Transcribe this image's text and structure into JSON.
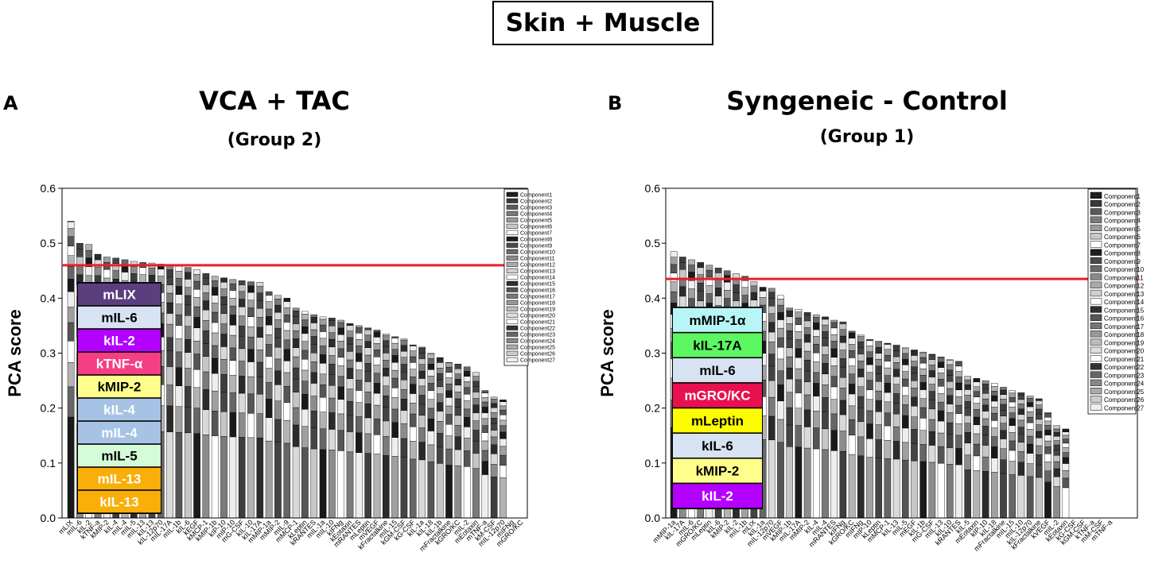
{
  "figure_title": "Skin + Muscle",
  "colors": {
    "threshold": "#e8202a",
    "bar_dark": "#222222"
  },
  "panels": [
    {
      "letter": "A",
      "title": "VCA + TAC",
      "subtitle": "(Group 2)"
    },
    {
      "letter": "B",
      "title": "Syngeneic - Control",
      "subtitle": "(Group 1)"
    }
  ],
  "chart_data": [
    {
      "type": "bar",
      "stacked": true,
      "title": "VCA + TAC",
      "ylabel": "PCA score",
      "ylim": [
        0,
        0.6
      ],
      "yticks": [
        "0.0",
        "0.1",
        "0.2",
        "0.3",
        "0.4",
        "0.5",
        "0.6"
      ],
      "threshold": 0.46,
      "categories": [
        "mLIX",
        "mIL-6",
        "kIL-2",
        "kTNF-a",
        "kMIP-2",
        "kIL-4",
        "mIL-4",
        "mIL-5",
        "mIL-13",
        "kIL-13",
        "kIL-12p70",
        "mIL-17A",
        "mIL-1b",
        "kIL-6",
        "kEGF",
        "kMCP-1",
        "kMIP-1b",
        "kIP-10",
        "mIP-10",
        "mG-CSF",
        "kIL-10",
        "kIL-17A",
        "mMIP-1a",
        "mMIP-2",
        "mIL-9",
        "mMCP-1",
        "kLeptin",
        "kRANTES",
        "mIL-1a",
        "mIL-10",
        "kIFNg",
        "kEotaxin",
        "mRANTES",
        "mLeptin",
        "mVEGF",
        "kFractalkine",
        "mIL-15",
        "kGM-CSF",
        "kG-CSF",
        "kIL-1a",
        "kIL-18",
        "kIL-1b",
        "mFractalkine",
        "kGRO/KC",
        "mIL-2",
        "mEotaxin",
        "mTNF-a",
        "kM-CSF",
        "mIL-12p70",
        "mIFNg",
        "mGRO/KC"
      ],
      "values": [
        0.54,
        0.5,
        0.498,
        0.48,
        0.475,
        0.473,
        0.47,
        0.467,
        0.465,
        0.464,
        0.462,
        0.461,
        0.458,
        0.456,
        0.452,
        0.445,
        0.44,
        0.437,
        0.434,
        0.432,
        0.43,
        0.429,
        0.412,
        0.405,
        0.4,
        0.382,
        0.376,
        0.37,
        0.366,
        0.364,
        0.36,
        0.354,
        0.35,
        0.346,
        0.342,
        0.335,
        0.33,
        0.326,
        0.315,
        0.311,
        0.3,
        0.292,
        0.283,
        0.28,
        0.275,
        0.265,
        0.232,
        0.22,
        0.215,
        0,
        0
      ],
      "highlight_labels": [
        "mLIX",
        "mIL-6",
        "kIL-2",
        "kTNF-α",
        "kMIP-2",
        "kIL-4",
        "mIL-4",
        "mIL-5",
        "mIL-13",
        "kIL-13"
      ],
      "highlight_colors": [
        "#5b3e7e",
        "#d7e3f2",
        "#b400ff",
        "#f43f84",
        "#fffd8c",
        "#a6c3e5",
        "#a6c3e5",
        "#d4fcd6",
        "#f9ae08",
        "#f9ae08"
      ],
      "highlight_text_colors": [
        "#ffffff",
        "#000000",
        "#ffffff",
        "#ffffff",
        "#000000",
        "#ffffff",
        "#ffffff",
        "#000000",
        "#ffffff",
        "#ffffff"
      ],
      "legend": [
        "Component1",
        "Component2",
        "Component3",
        "Component4",
        "Component5",
        "Component6",
        "Component7",
        "Component8",
        "Component9",
        "Component10",
        "Component11",
        "Component12",
        "Component13",
        "Component14",
        "Component15",
        "Component16",
        "Component17",
        "Component18",
        "Component19",
        "Component20",
        "Component21",
        "Component22",
        "Component23",
        "Component24",
        "Component25",
        "Component26",
        "Component27"
      ],
      "legend_colors": [
        "#1e1e1e",
        "#3a3a3a",
        "#5a5a5a",
        "#7a7a7a",
        "#9a9a9a",
        "#c8c8c8",
        "#ffffff",
        "#1e1e1e",
        "#4a4a4a",
        "#6a6a6a",
        "#8a8a8a",
        "#aaaaaa",
        "#d0d0d0",
        "#ffffff",
        "#2e2e2e",
        "#555555",
        "#777777",
        "#999999",
        "#bbbbbb",
        "#dddddd",
        "#ffffff",
        "#333333",
        "#666666",
        "#888888",
        "#aaaaaa",
        "#cccccc",
        "#eeeeee"
      ]
    },
    {
      "type": "bar",
      "stacked": true,
      "title": "Syngeneic - Control",
      "ylabel": "PCA score",
      "ylim": [
        0,
        0.6
      ],
      "yticks": [
        "0.0",
        "0.1",
        "0.2",
        "0.3",
        "0.4",
        "0.5",
        "0.6"
      ],
      "threshold": 0.435,
      "categories": [
        "mMIP-1a",
        "kIL-17A",
        "mIL-6",
        "mGRO/KC",
        "mLeptin",
        "kIL-6",
        "kMIP-2",
        "kIL-2",
        "mIL-1b",
        "mLIX",
        "kIL-1a",
        "mIL-12p70",
        "mVEGF",
        "kMIP-1b",
        "mIL-17A",
        "mMIP-2",
        "kIL-4",
        "mIL-4",
        "mRANTES",
        "kIFNg",
        "kGRO/KC",
        "mIFNg",
        "mIP-10",
        "kLeptin",
        "mMCP-1",
        "kIL-13",
        "mIL-5",
        "mEGF",
        "kIL-1b",
        "mG-CSF",
        "mIL-13",
        "kIL-10",
        "kRANTES",
        "kIL-5",
        "mEotaxin",
        "kIP-10",
        "kIL-18",
        "mFractalkine",
        "mIL-15",
        "mIL-10",
        "kIL-12p70",
        "kFractalkine",
        "kVEGF",
        "mIL-2",
        "kEotaxin",
        "kG-CSF",
        "kGM-CSF",
        "kTNF-a",
        "mM-CSF",
        "mTNF-a"
      ],
      "values": [
        0.485,
        0.475,
        0.47,
        0.465,
        0.46,
        0.455,
        0.45,
        0.445,
        0.44,
        0.43,
        0.42,
        0.418,
        0.405,
        0.382,
        0.38,
        0.374,
        0.37,
        0.366,
        0.36,
        0.357,
        0.34,
        0.333,
        0.325,
        0.322,
        0.318,
        0.315,
        0.31,
        0.306,
        0.302,
        0.298,
        0.293,
        0.288,
        0.285,
        0.258,
        0.254,
        0.25,
        0.245,
        0.238,
        0.232,
        0.228,
        0.222,
        0.217,
        0.192,
        0.168,
        0.162,
        0,
        0,
        0,
        0,
        0
      ],
      "highlight_labels": [
        "mMIP-1α",
        "kIL-17A",
        "mIL-6",
        "mGRO/KC",
        "mLeptin",
        "kIL-6",
        "kMIP-2",
        "kIL-2"
      ],
      "highlight_colors": [
        "#b8f5f7",
        "#5df761",
        "#d7e3f2",
        "#e8114f",
        "#fcfd00",
        "#d7e3f2",
        "#fffd8c",
        "#b400ff"
      ],
      "highlight_text_colors": [
        "#000000",
        "#000000",
        "#000000",
        "#ffffff",
        "#000000",
        "#000000",
        "#000000",
        "#ffffff"
      ],
      "legend": [
        "Component1",
        "Component2",
        "Component3",
        "Component4",
        "Component5",
        "Component6",
        "Component7",
        "Component8",
        "Component9",
        "Component10",
        "Component11",
        "Component12",
        "Component13",
        "Component14",
        "Component15",
        "Component16",
        "Component17",
        "Component18",
        "Component19",
        "Component20",
        "Component21",
        "Component22",
        "Component23",
        "Component24",
        "Component25",
        "Component26",
        "Component27"
      ],
      "legend_colors": [
        "#1e1e1e",
        "#3a3a3a",
        "#5a5a5a",
        "#7a7a7a",
        "#9a9a9a",
        "#c8c8c8",
        "#ffffff",
        "#1e1e1e",
        "#4a4a4a",
        "#6a6a6a",
        "#8a8a8a",
        "#aaaaaa",
        "#d0d0d0",
        "#ffffff",
        "#2e2e2e",
        "#555555",
        "#777777",
        "#999999",
        "#bbbbbb",
        "#dddddd",
        "#ffffff",
        "#333333",
        "#666666",
        "#888888",
        "#aaaaaa",
        "#cccccc",
        "#eeeeee"
      ]
    }
  ]
}
